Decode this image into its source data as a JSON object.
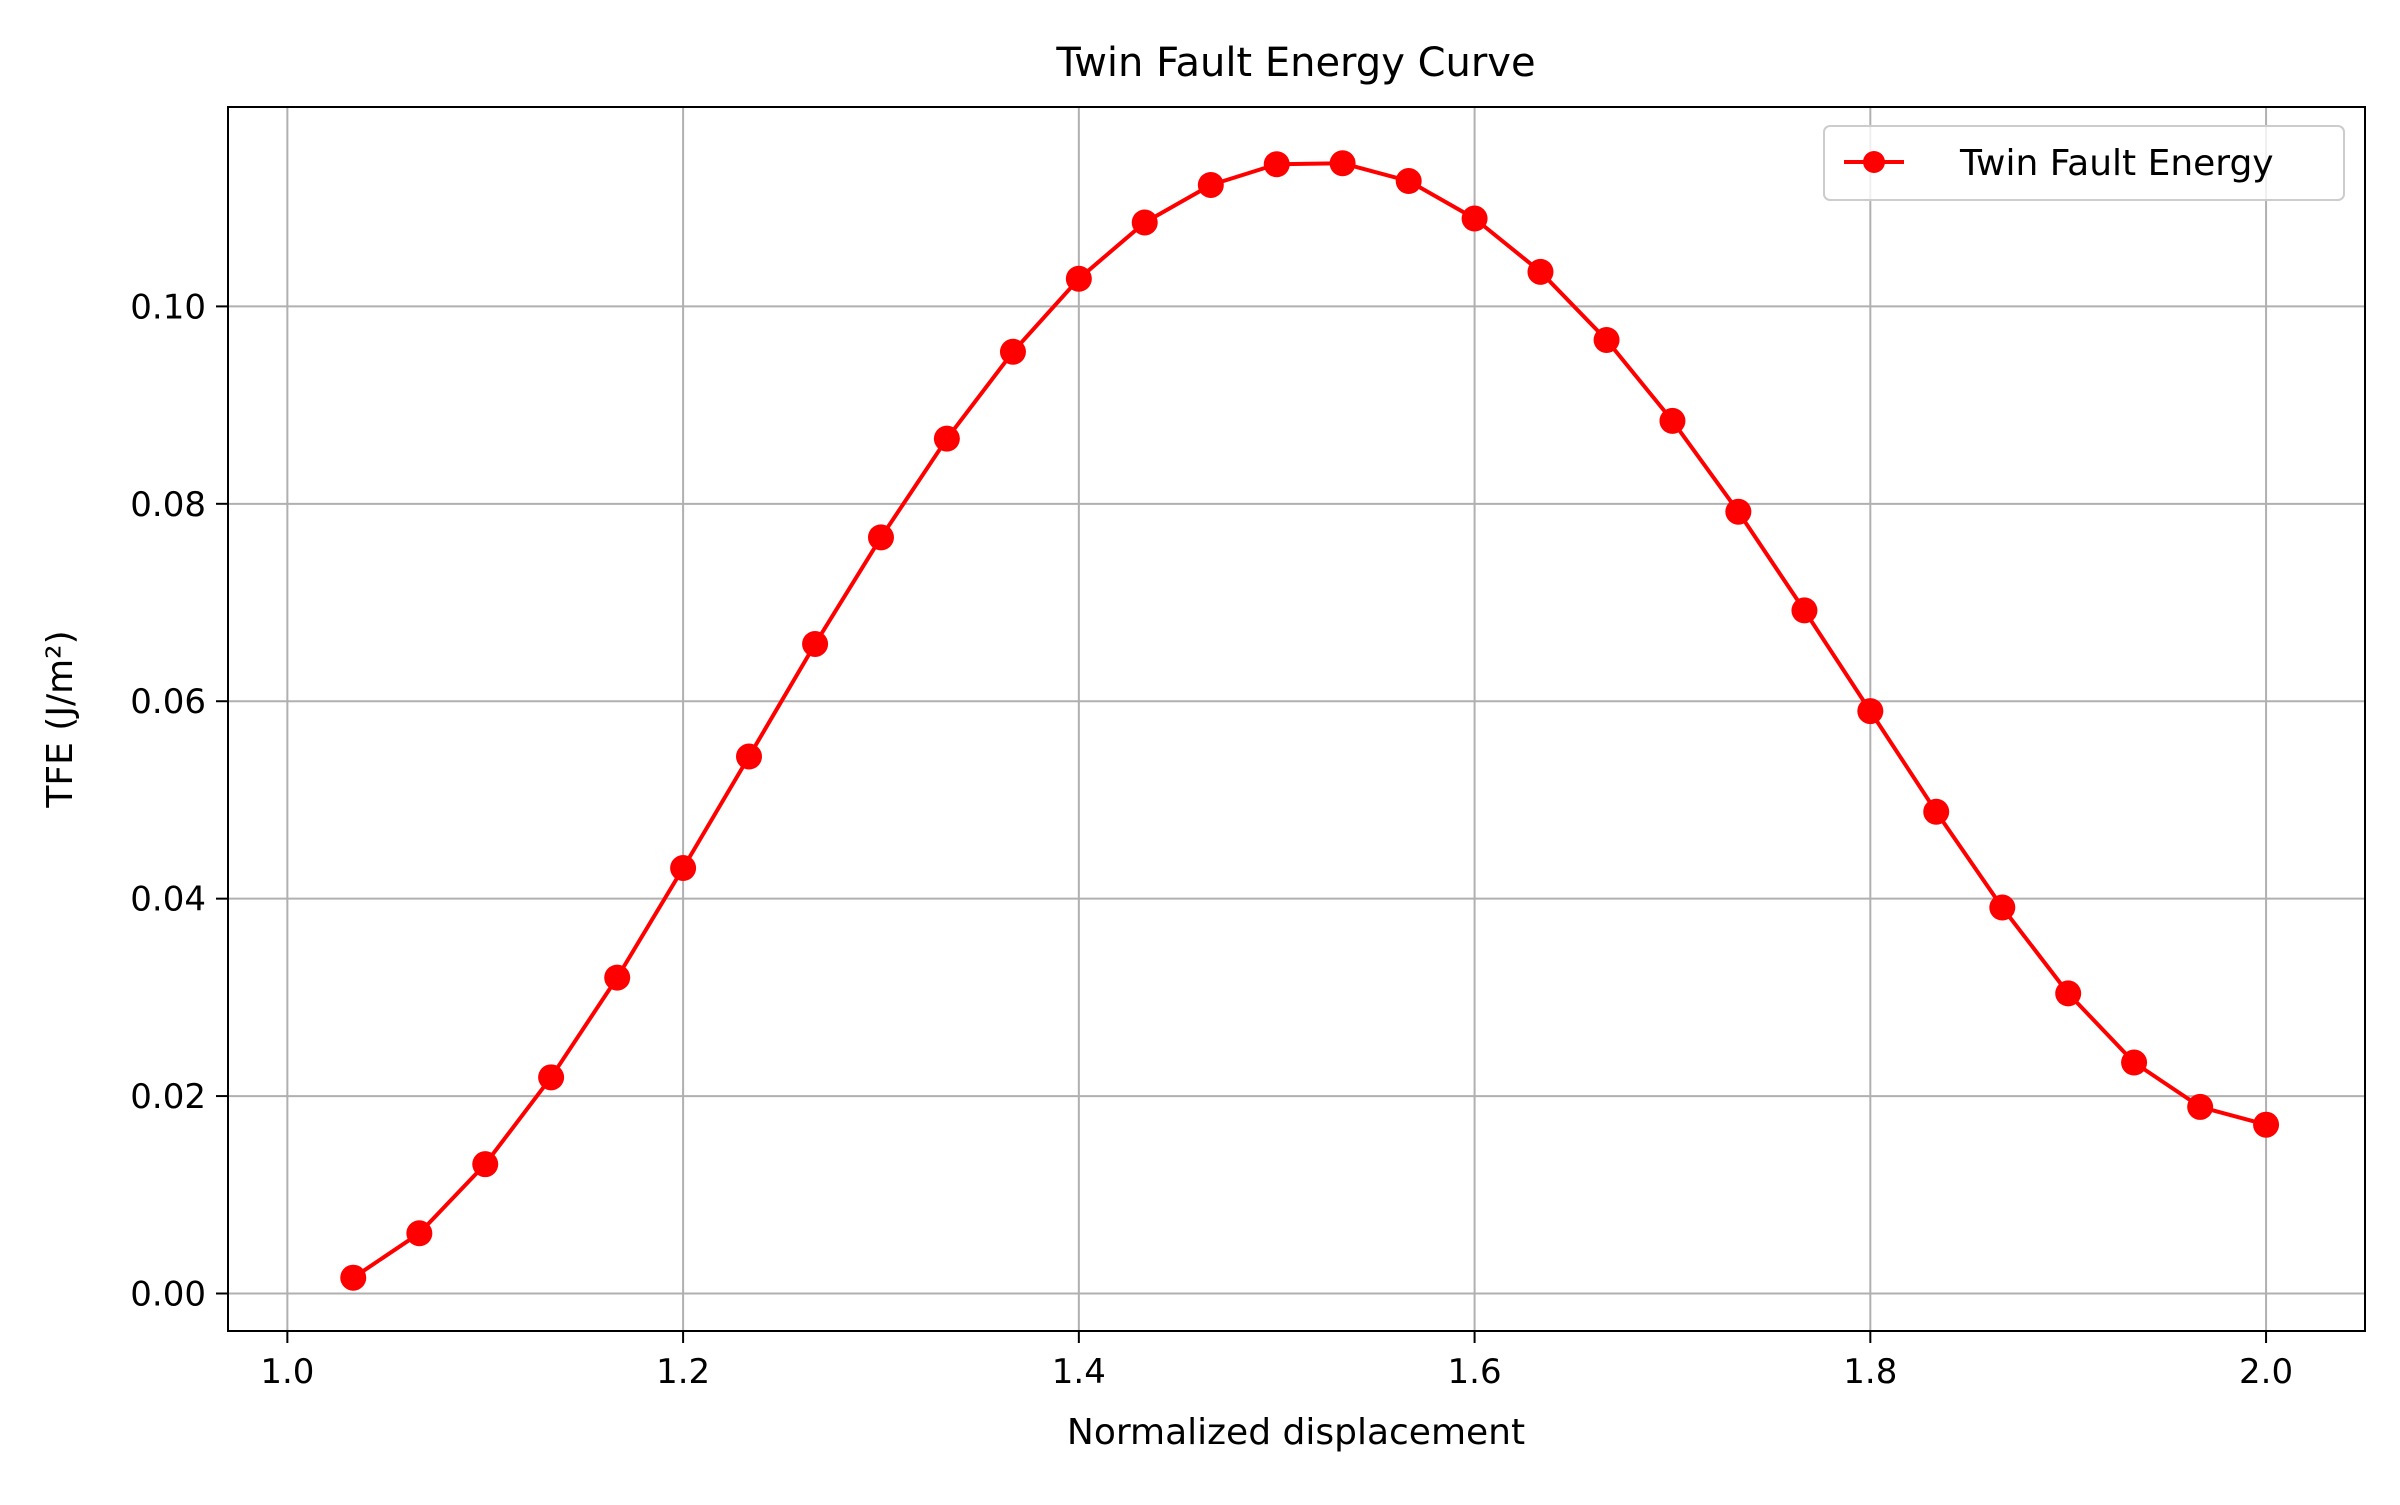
{
  "chart_data": {
    "type": "line",
    "title": "Twin Fault Energy Curve",
    "xlabel": "Normalized displacement",
    "ylabel": "TFE (J/m²)",
    "xlim": [
      0.97,
      2.05
    ],
    "ylim": [
      -0.0038,
      0.1202
    ],
    "xticks": [
      1.0,
      1.2,
      1.4,
      1.6,
      1.8,
      2.0
    ],
    "xtick_labels": [
      "1.0",
      "1.2",
      "1.4",
      "1.6",
      "1.8",
      "2.0"
    ],
    "yticks": [
      0.0,
      0.02,
      0.04,
      0.06,
      0.08,
      0.1
    ],
    "ytick_labels": [
      "0.00",
      "0.02",
      "0.04",
      "0.06",
      "0.08",
      "0.10"
    ],
    "grid": true,
    "legend_position": "top-right",
    "series": [
      {
        "name": "Twin Fault Energy",
        "color": "#ff0000",
        "marker": "circle",
        "x": [
          1.0333,
          1.0667,
          1.1,
          1.1333,
          1.1667,
          1.2,
          1.2333,
          1.2667,
          1.3,
          1.3333,
          1.3667,
          1.4,
          1.4333,
          1.4667,
          1.5,
          1.5333,
          1.5667,
          1.6,
          1.6333,
          1.6667,
          1.7,
          1.7333,
          1.7667,
          1.8,
          1.8333,
          1.8667,
          1.9,
          1.9333,
          1.9667,
          2.0
        ],
        "y": [
          0.0016,
          0.0061,
          0.0131,
          0.0219,
          0.032,
          0.0431,
          0.0544,
          0.0658,
          0.0766,
          0.0866,
          0.0954,
          0.1028,
          0.1085,
          0.1123,
          0.1144,
          0.1145,
          0.1127,
          0.1089,
          0.1035,
          0.0966,
          0.0884,
          0.0792,
          0.0692,
          0.059,
          0.0488,
          0.0391,
          0.0304,
          0.0234,
          0.0189,
          0.0171
        ]
      }
    ]
  }
}
